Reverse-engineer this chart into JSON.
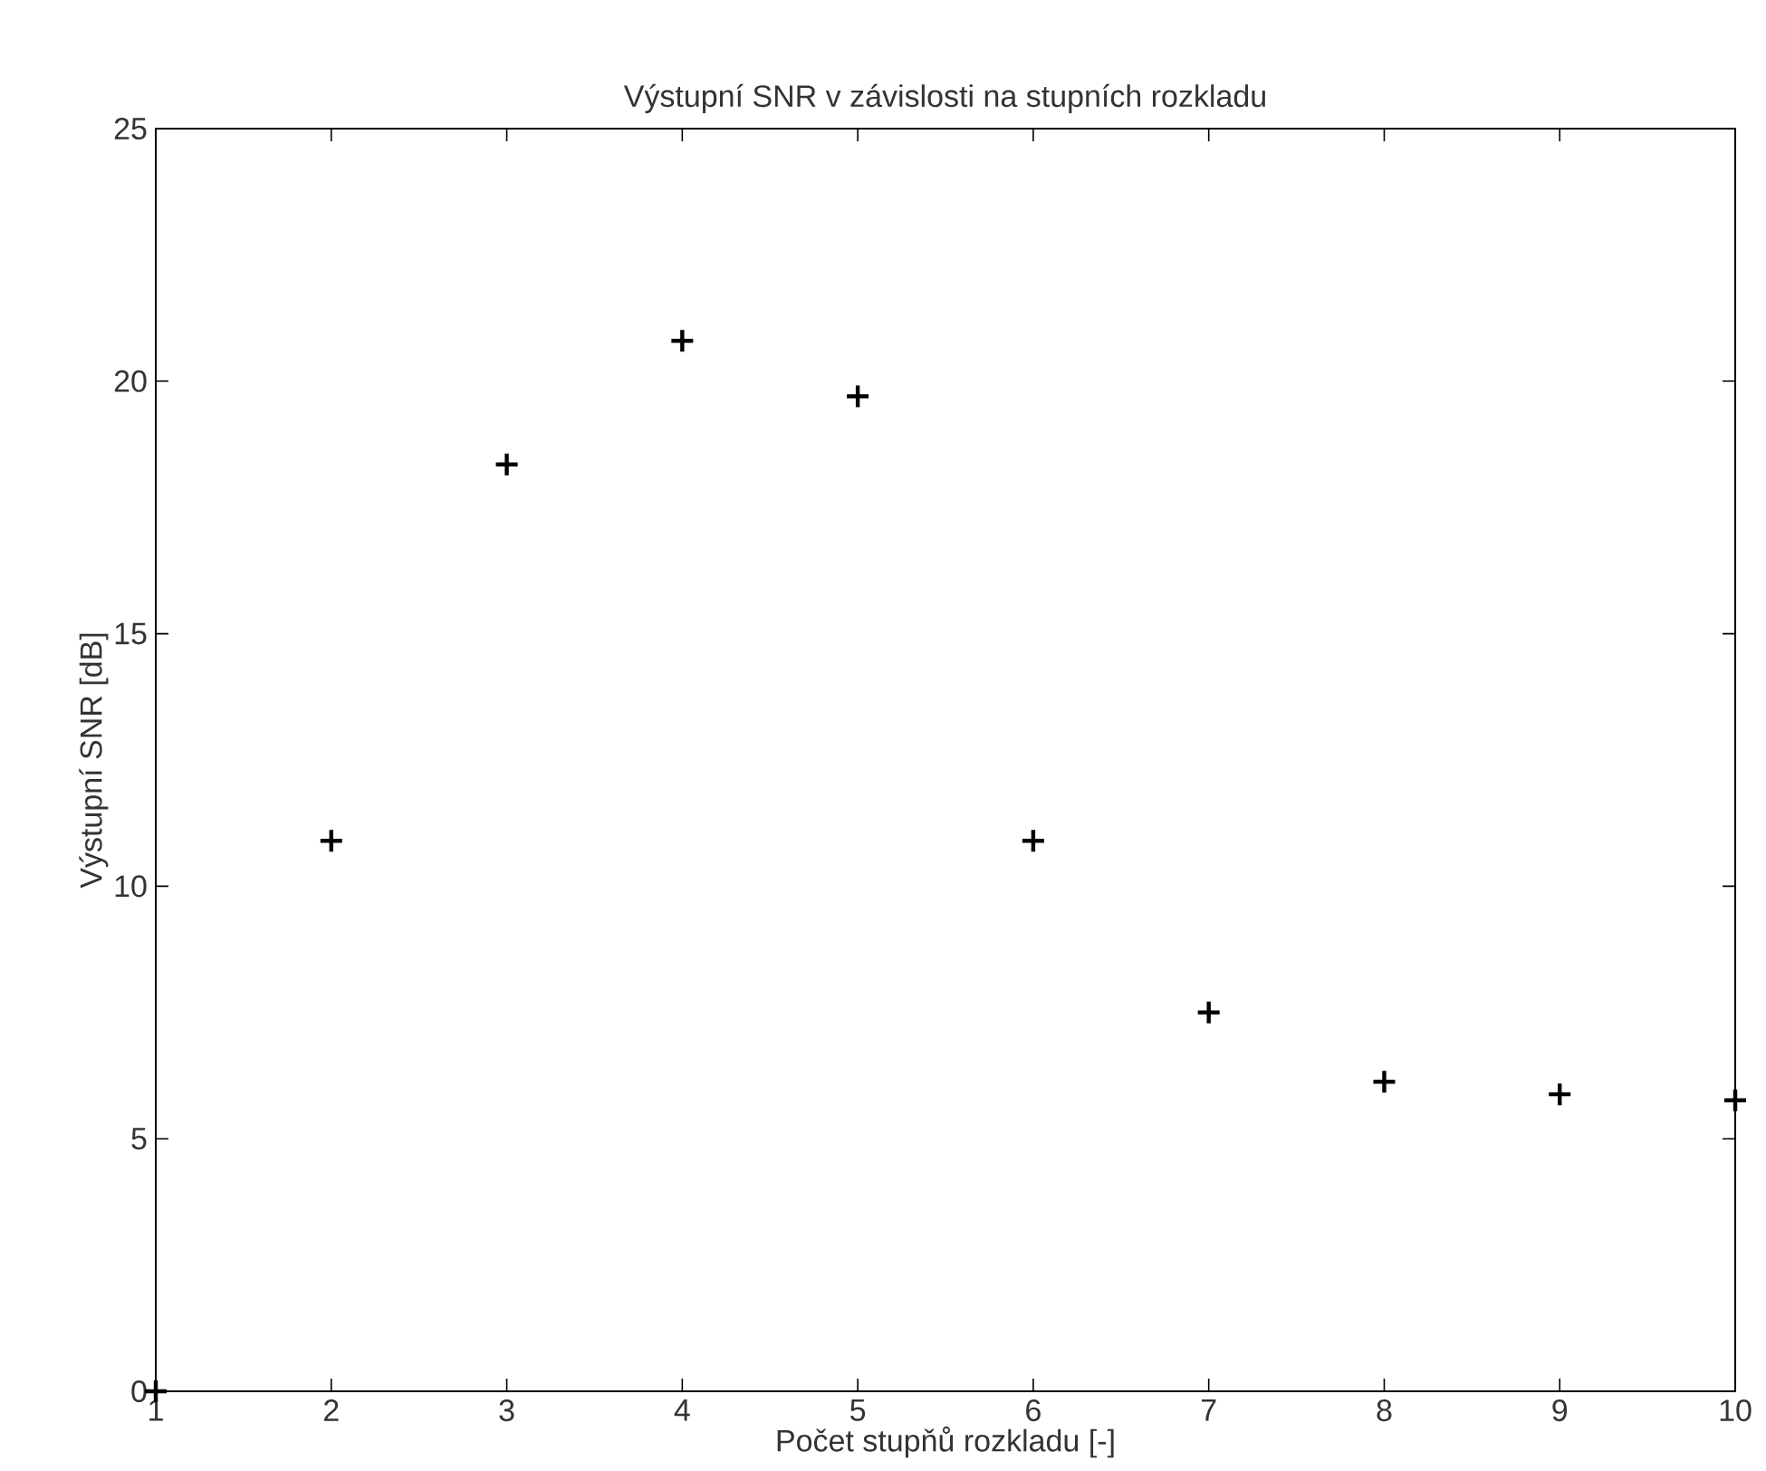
{
  "chart_data": {
    "type": "scatter",
    "title": "Výstupní SNR v závislosti na stupních rozkladu",
    "xlabel": "Počet stupňů rozkladu [-]",
    "ylabel": "Výstupní SNR [dB]",
    "x": [
      1,
      2,
      3,
      4,
      5,
      6,
      7,
      8,
      9,
      10
    ],
    "series": [
      {
        "color": "#000000",
        "values": [
          0,
          10.9,
          18.35,
          20.8,
          19.7,
          10.9,
          7.5,
          6.13,
          5.88,
          5.76
        ]
      }
    ],
    "xlim": [
      1,
      10
    ],
    "ylim": [
      0,
      25
    ],
    "xticks": [
      1,
      2,
      3,
      4,
      5,
      6,
      7,
      8,
      9,
      10
    ],
    "yticks": [
      0,
      5,
      10,
      15,
      20,
      25
    ],
    "marker": "cross"
  }
}
